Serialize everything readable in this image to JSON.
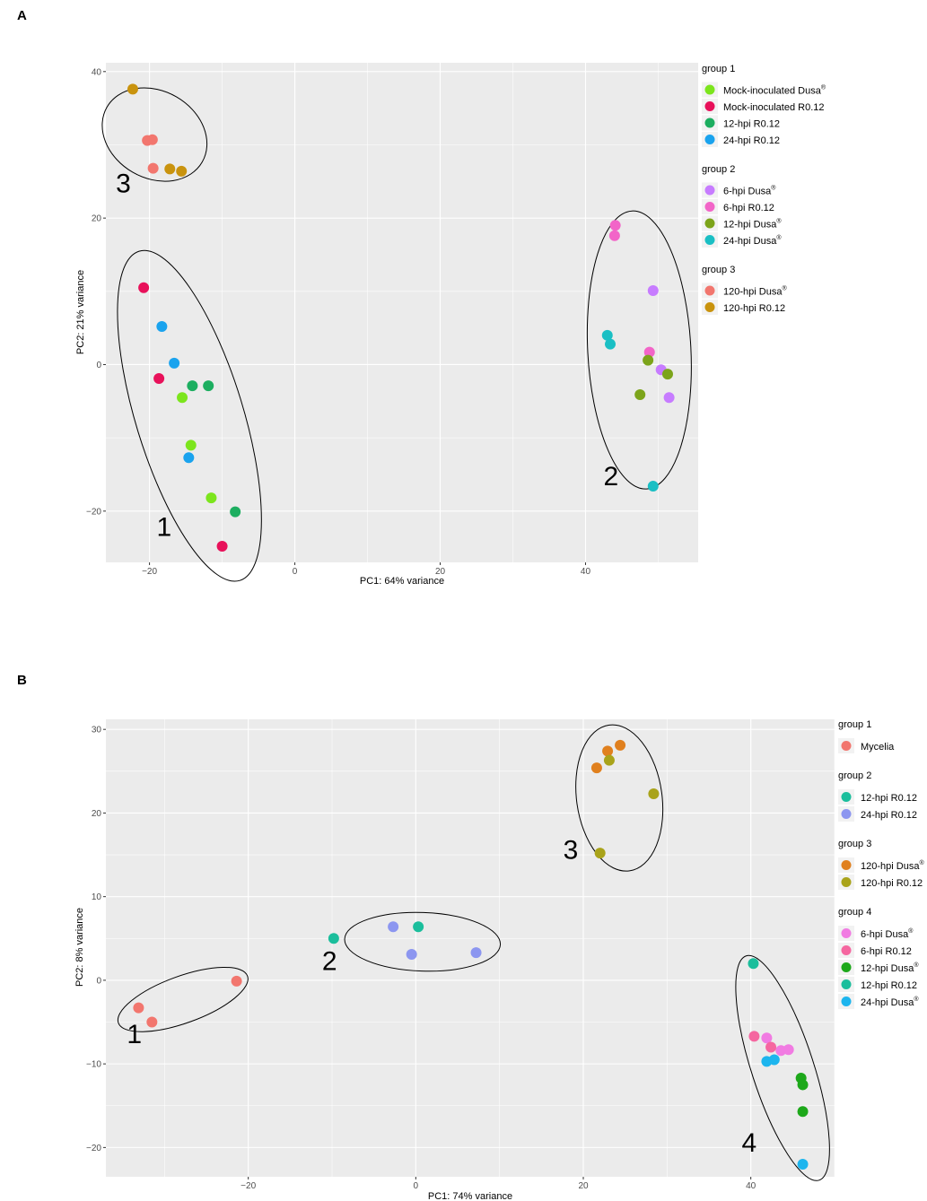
{
  "chart_data": [
    {
      "panel_label": "A",
      "type": "scatter",
      "xlabel": "PC1: 64% variance",
      "ylabel": "PC2: 21% variance",
      "xlim": [
        -26,
        55.5
      ],
      "ylim": [
        -27,
        41.2
      ],
      "xticks": [
        -20,
        0,
        20,
        40
      ],
      "yticks": [
        -20,
        0,
        20,
        40
      ],
      "legend_groups": [
        {
          "title": "group 1",
          "items": [
            {
              "label": "Mock-inoculated Dusa",
              "sup": "®",
              "color": "#7CE51D"
            },
            {
              "label": "Mock-inoculated R0.12",
              "sup": "",
              "color": "#E8115A"
            },
            {
              "label": "12-hpi R0.12",
              "sup": "",
              "color": "#1DAE60"
            },
            {
              "label": "24-hpi R0.12",
              "sup": "",
              "color": "#1AA3EE"
            }
          ]
        },
        {
          "title": "group 2",
          "items": [
            {
              "label": "6-hpi Dusa",
              "sup": "®",
              "color": "#C77CFF"
            },
            {
              "label": "6-hpi R0.12",
              "sup": "",
              "color": "#F265C8"
            },
            {
              "label": "12-hpi Dusa",
              "sup": "®",
              "color": "#7CA41A"
            },
            {
              "label": "24-hpi Dusa",
              "sup": "®",
              "color": "#1ABFC4"
            }
          ]
        },
        {
          "title": "group 3",
          "items": [
            {
              "label": "120-hpi Dusa",
              "sup": "®",
              "color": "#F2766E"
            },
            {
              "label": "120-hpi R0.12",
              "sup": "",
              "color": "#C9930E"
            }
          ]
        }
      ],
      "series": [
        {
          "name": "Mock-inoculated Dusa",
          "color": "#7CE51D",
          "points": [
            [
              -15.5,
              -4.5
            ],
            [
              -14.3,
              -11
            ],
            [
              -11.5,
              -18.2
            ]
          ]
        },
        {
          "name": "Mock-inoculated R0.12",
          "color": "#E8115A",
          "points": [
            [
              -20.8,
              10.5
            ],
            [
              -18.7,
              -1.9
            ],
            [
              -10,
              -24.8
            ]
          ]
        },
        {
          "name": "12-hpi R0.12",
          "color": "#1DAE60",
          "points": [
            [
              -14.1,
              -2.9
            ],
            [
              -11.9,
              -2.9
            ],
            [
              -8.2,
              -20.1
            ]
          ]
        },
        {
          "name": "24-hpi R0.12",
          "color": "#1AA3EE",
          "points": [
            [
              -18.3,
              5.2
            ],
            [
              -16.6,
              0.2
            ],
            [
              -14.6,
              -12.7
            ]
          ]
        },
        {
          "name": "6-hpi Dusa",
          "color": "#C77CFF",
          "points": [
            [
              49.3,
              10.1
            ],
            [
              50.4,
              -0.7
            ],
            [
              51.5,
              -4.5
            ]
          ]
        },
        {
          "name": "6-hpi R0.12",
          "color": "#F265C8",
          "points": [
            [
              44.1,
              19
            ],
            [
              44,
              17.6
            ],
            [
              48.8,
              1.7
            ]
          ]
        },
        {
          "name": "12-hpi Dusa",
          "color": "#7CA41A",
          "points": [
            [
              48.6,
              0.6
            ],
            [
              51.3,
              -1.3
            ],
            [
              47.5,
              -4.1
            ]
          ]
        },
        {
          "name": "24-hpi Dusa",
          "color": "#1ABFC4",
          "points": [
            [
              43,
              4
            ],
            [
              43.4,
              2.8
            ],
            [
              49.3,
              -16.6
            ]
          ]
        },
        {
          "name": "120-hpi Dusa",
          "color": "#F2766E",
          "points": [
            [
              -20.3,
              30.6
            ],
            [
              -19.6,
              30.7
            ],
            [
              -19.5,
              26.8
            ]
          ]
        },
        {
          "name": "120-hpi R0.12",
          "color": "#C9930E",
          "points": [
            [
              -22.3,
              37.6
            ],
            [
              -17.2,
              26.7
            ],
            [
              -15.6,
              26.4
            ]
          ]
        }
      ],
      "ellipses": [
        {
          "label": "1",
          "cx": -14.5,
          "cy": -7,
          "rx": 7.4,
          "ry": 23.5,
          "tilt": -17
        },
        {
          "label": "2",
          "cx": 47.4,
          "cy": 2,
          "rx": 7.1,
          "ry": 19,
          "tilt": -3
        },
        {
          "label": "3",
          "cx": -19.3,
          "cy": 31.4,
          "rx": 6,
          "ry": 7.5,
          "tilt": -60
        }
      ],
      "cluster_labels": [
        {
          "text": "1",
          "x": -18,
          "y": -23.4
        },
        {
          "text": "2",
          "x": 43.5,
          "y": -16.5
        },
        {
          "text": "3",
          "x": -23.6,
          "y": 23.5
        }
      ]
    },
    {
      "panel_label": "B",
      "type": "scatter",
      "xlabel": "PC1: 74% variance",
      "ylabel": "PC2: 8% variance",
      "xlim": [
        -37,
        50
      ],
      "ylim": [
        -23.5,
        31.2
      ],
      "xticks": [
        -20,
        0,
        20,
        40
      ],
      "yticks": [
        -20,
        -10,
        0,
        10,
        20,
        30
      ],
      "legend_groups": [
        {
          "title": "group 1",
          "items": [
            {
              "label": "Mycelia",
              "sup": "",
              "color": "#F2766E"
            }
          ]
        },
        {
          "title": "group 2",
          "items": [
            {
              "label": "12-hpi R0.12",
              "sup": "",
              "color": "#1BBE9C"
            },
            {
              "label": "24-hpi R0.12",
              "sup": "",
              "color": "#8C96F0"
            }
          ]
        },
        {
          "title": "group 3",
          "items": [
            {
              "label": "120-hpi Dusa",
              "sup": "®",
              "color": "#E0801E"
            },
            {
              "label": "120-hpi R0.12",
              "sup": "",
              "color": "#A9A31A"
            }
          ]
        },
        {
          "title": "group 4",
          "items": [
            {
              "label": "6-hpi Dusa",
              "sup": "®",
              "color": "#F17BE2"
            },
            {
              "label": "6-hpi R0.12",
              "sup": "",
              "color": "#F567A0"
            },
            {
              "label": "12-hpi Dusa",
              "sup": "®",
              "color": "#1DA81A"
            },
            {
              "label": "12-hpi R0.12",
              "sup": "",
              "color": "#1BBE9C"
            },
            {
              "label": "24-hpi Dusa",
              "sup": "®",
              "color": "#1DB5EE"
            }
          ]
        }
      ],
      "series": [
        {
          "name": "Mycelia",
          "color": "#F2766E",
          "points": [
            [
              -33.1,
              -3.3
            ],
            [
              -31.5,
              -5
            ],
            [
              -21.4,
              -0.1
            ]
          ]
        },
        {
          "name": "12-hpi R0.12",
          "color": "#1BBE9C",
          "points": [
            [
              -9.8,
              5
            ],
            [
              0.3,
              6.4
            ],
            [
              40.3,
              2
            ]
          ]
        },
        {
          "name": "24-hpi R0.12",
          "color": "#8C96F0",
          "points": [
            [
              -2.7,
              6.4
            ],
            [
              -0.5,
              3.1
            ],
            [
              7.2,
              3.3
            ]
          ]
        },
        {
          "name": "120-hpi Dusa",
          "color": "#E0801E",
          "points": [
            [
              21.6,
              25.4
            ],
            [
              22.9,
              27.4
            ],
            [
              24.4,
              28.1
            ]
          ]
        },
        {
          "name": "120-hpi R0.12",
          "color": "#A9A31A",
          "points": [
            [
              23.1,
              26.3
            ],
            [
              28.4,
              22.3
            ],
            [
              22,
              15.2
            ]
          ]
        },
        {
          "name": "6-hpi Dusa",
          "color": "#F17BE2",
          "points": [
            [
              41.9,
              -6.9
            ],
            [
              43.6,
              -8.4
            ],
            [
              44.5,
              -8.3
            ]
          ]
        },
        {
          "name": "6-hpi R0.12",
          "color": "#F567A0",
          "points": [
            [
              40.4,
              -6.7
            ],
            [
              42.4,
              -8
            ]
          ]
        },
        {
          "name": "12-hpi Dusa",
          "color": "#1DA81A",
          "points": [
            [
              46,
              -11.7
            ],
            [
              46.2,
              -12.5
            ],
            [
              46.2,
              -15.7
            ]
          ]
        },
        {
          "name": "24-hpi Dusa",
          "color": "#1DB5EE",
          "points": [
            [
              41.9,
              -9.7
            ],
            [
              42.8,
              -9.5
            ],
            [
              46.2,
              -22
            ]
          ]
        }
      ],
      "ellipses": [
        {
          "label": "1",
          "cx": -27.8,
          "cy": -2.3,
          "rx": 8.2,
          "ry": 2.8,
          "tilt": -20
        },
        {
          "label": "2",
          "cx": 0.8,
          "cy": 4.6,
          "rx": 9.3,
          "ry": 3.5,
          "tilt": 2
        },
        {
          "label": "3",
          "cx": 24.3,
          "cy": 21.8,
          "rx": 5.1,
          "ry": 8.8,
          "tilt": -8
        },
        {
          "label": "4",
          "cx": 43.8,
          "cy": -10.5,
          "rx": 3.7,
          "ry": 14.1,
          "tilt": -18
        }
      ],
      "cluster_labels": [
        {
          "text": "1",
          "x": -33.6,
          "y": -7.5
        },
        {
          "text": "2",
          "x": -10.3,
          "y": 1.2
        },
        {
          "text": "3",
          "x": 18.5,
          "y": 14.5
        },
        {
          "text": "4",
          "x": 39.8,
          "y": -20.5
        }
      ]
    }
  ]
}
